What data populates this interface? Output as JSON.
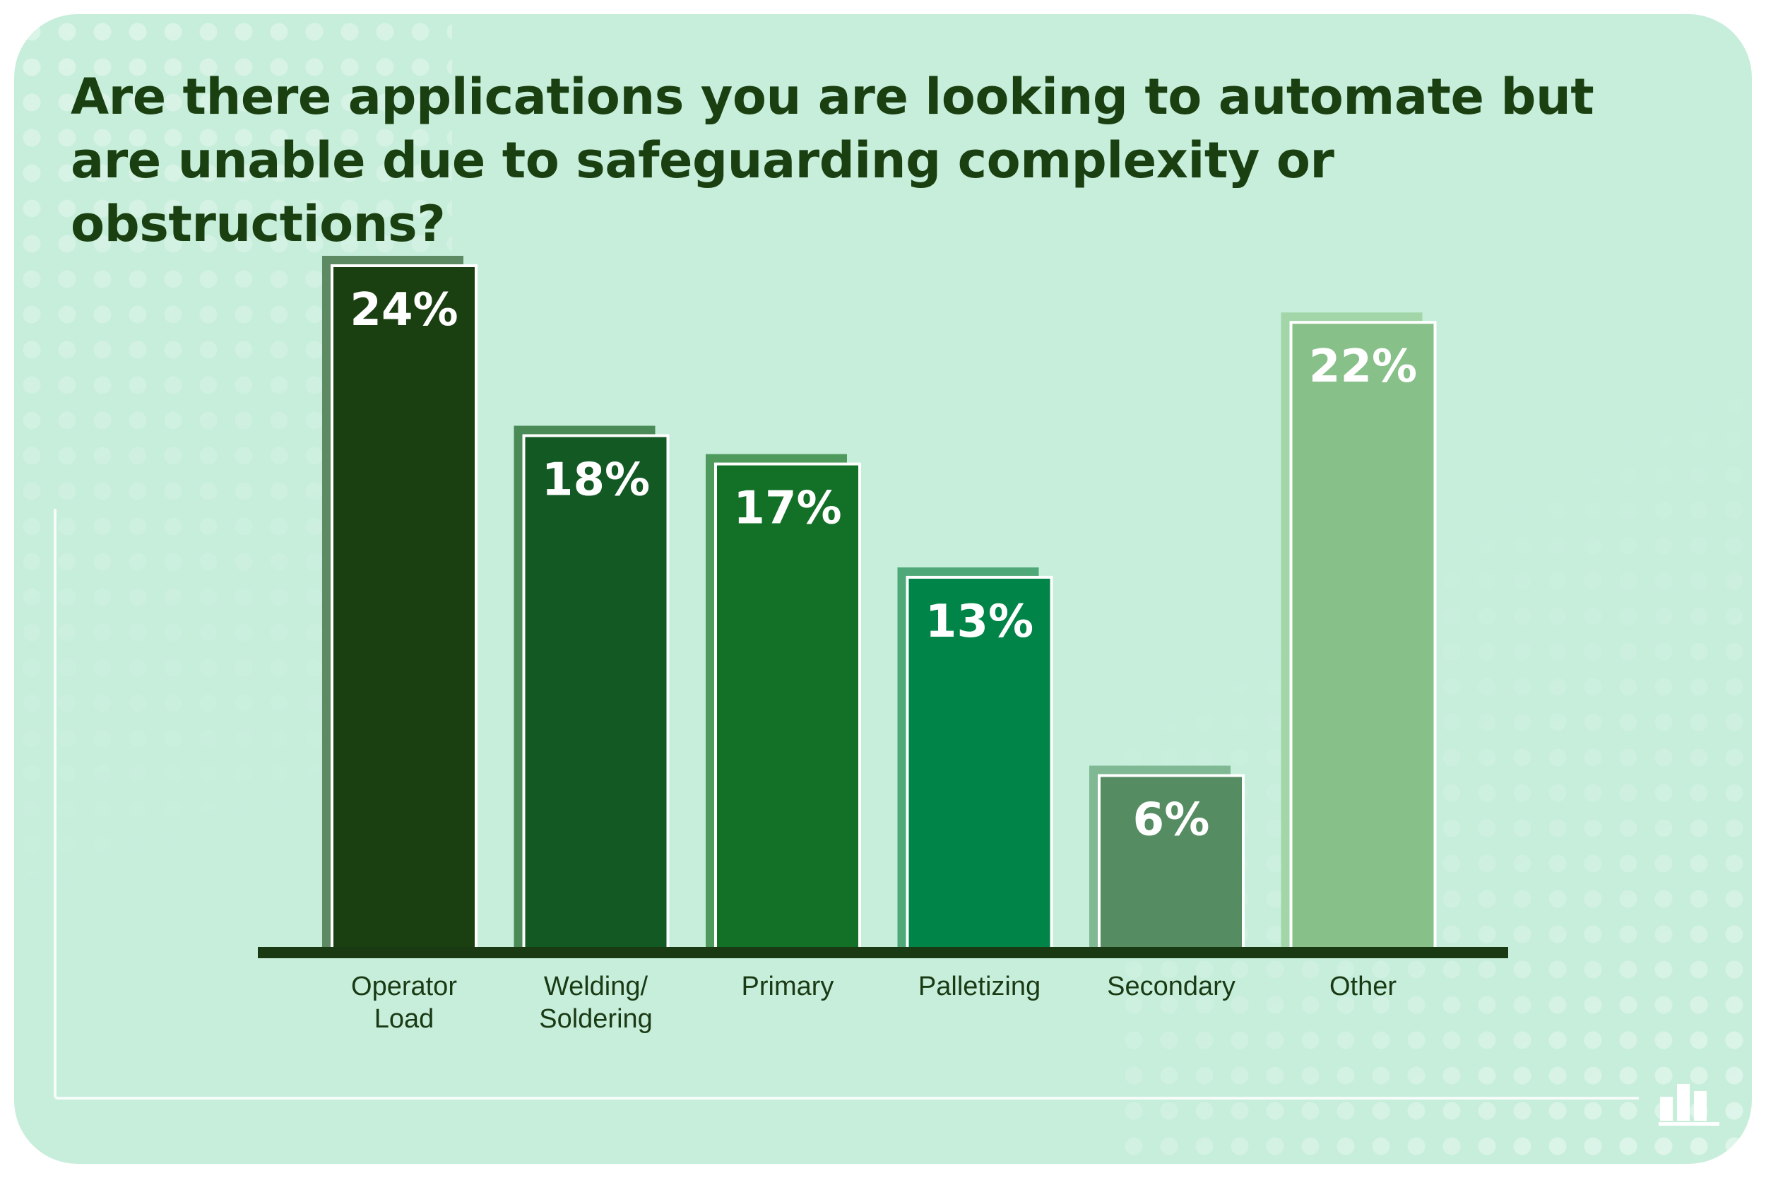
{
  "colors": {
    "background": "#c6eedb",
    "title": "#1a3f10",
    "axis": "#1a3a14"
  },
  "chart_data": {
    "type": "bar",
    "title": "Are there applications you are looking to automate but are unable due to safeguarding complexity or obstructions?",
    "categories": [
      "Operator Load",
      "Welding/ Soldering",
      "Primary",
      "Palletizing",
      "Secondary",
      "Other"
    ],
    "category_lines": [
      [
        "Operator",
        "Load"
      ],
      [
        "Welding/",
        "Soldering"
      ],
      [
        "Primary"
      ],
      [
        "Palletizing"
      ],
      [
        "Secondary"
      ],
      [
        "Other"
      ]
    ],
    "values": [
      24,
      18,
      17,
      13,
      6,
      22
    ],
    "value_labels": [
      "24%",
      "18%",
      "17%",
      "13%",
      "6%",
      "22%"
    ],
    "bar_colors": [
      "#1a3f10",
      "#135924",
      "#137027",
      "#018447",
      "#558c62",
      "#87c088"
    ],
    "shadow_colors": [
      "#5e8a63",
      "#4a8a56",
      "#4e9a5c",
      "#4fa878",
      "#80b893",
      "#a2d6a8"
    ],
    "ylim": [
      0,
      24
    ],
    "grid": false,
    "legend": "none",
    "xlabel": "",
    "ylabel": ""
  }
}
